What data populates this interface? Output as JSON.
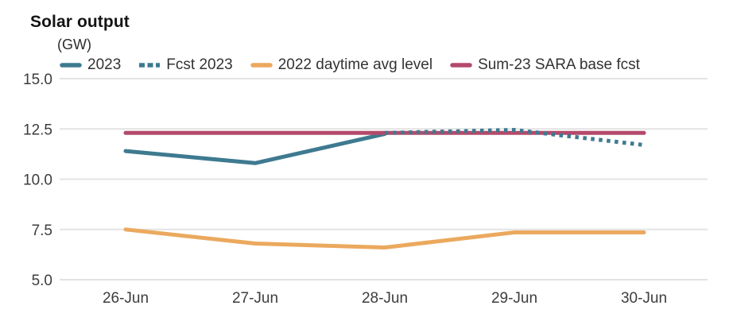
{
  "title": "Solar output",
  "subtitle": "(GW)",
  "colors": {
    "teal": "#3e7a90",
    "orange": "#eba95e",
    "maroon": "#b44a6b",
    "gridline": "#e3e3e3",
    "axis_text": "#3d3d3d"
  },
  "chart_data": {
    "type": "line",
    "title": "Solar output",
    "ylabel": "(GW)",
    "xlabel": "",
    "categories": [
      "26-Jun",
      "27-Jun",
      "28-Jun",
      "29-Jun",
      "30-Jun"
    ],
    "series": [
      {
        "name": "2023",
        "style": "solid",
        "color": "#3e7a90",
        "z": 1,
        "values": [
          11.4,
          10.8,
          12.25,
          null,
          null
        ]
      },
      {
        "name": "Fcst 2023",
        "style": "dotted",
        "color": "#3e7a90",
        "z": 4,
        "values": [
          null,
          null,
          12.3,
          12.45,
          11.7
        ]
      },
      {
        "name": "2022 daytime avg level",
        "style": "solid",
        "color": "#eba95e",
        "z": 2,
        "values": [
          7.5,
          6.8,
          6.6,
          7.35,
          7.35
        ]
      },
      {
        "name": "Sum-23 SARA base fcst",
        "style": "solid",
        "color": "#b44a6b",
        "z": 3,
        "values": [
          12.3,
          12.3,
          12.3,
          12.3,
          12.3
        ]
      }
    ],
    "ylim": [
      5,
      15
    ],
    "yticks": [
      15.0,
      12.5,
      10.0,
      7.5,
      5.0
    ],
    "grid": true,
    "legend_position": "top-left"
  }
}
